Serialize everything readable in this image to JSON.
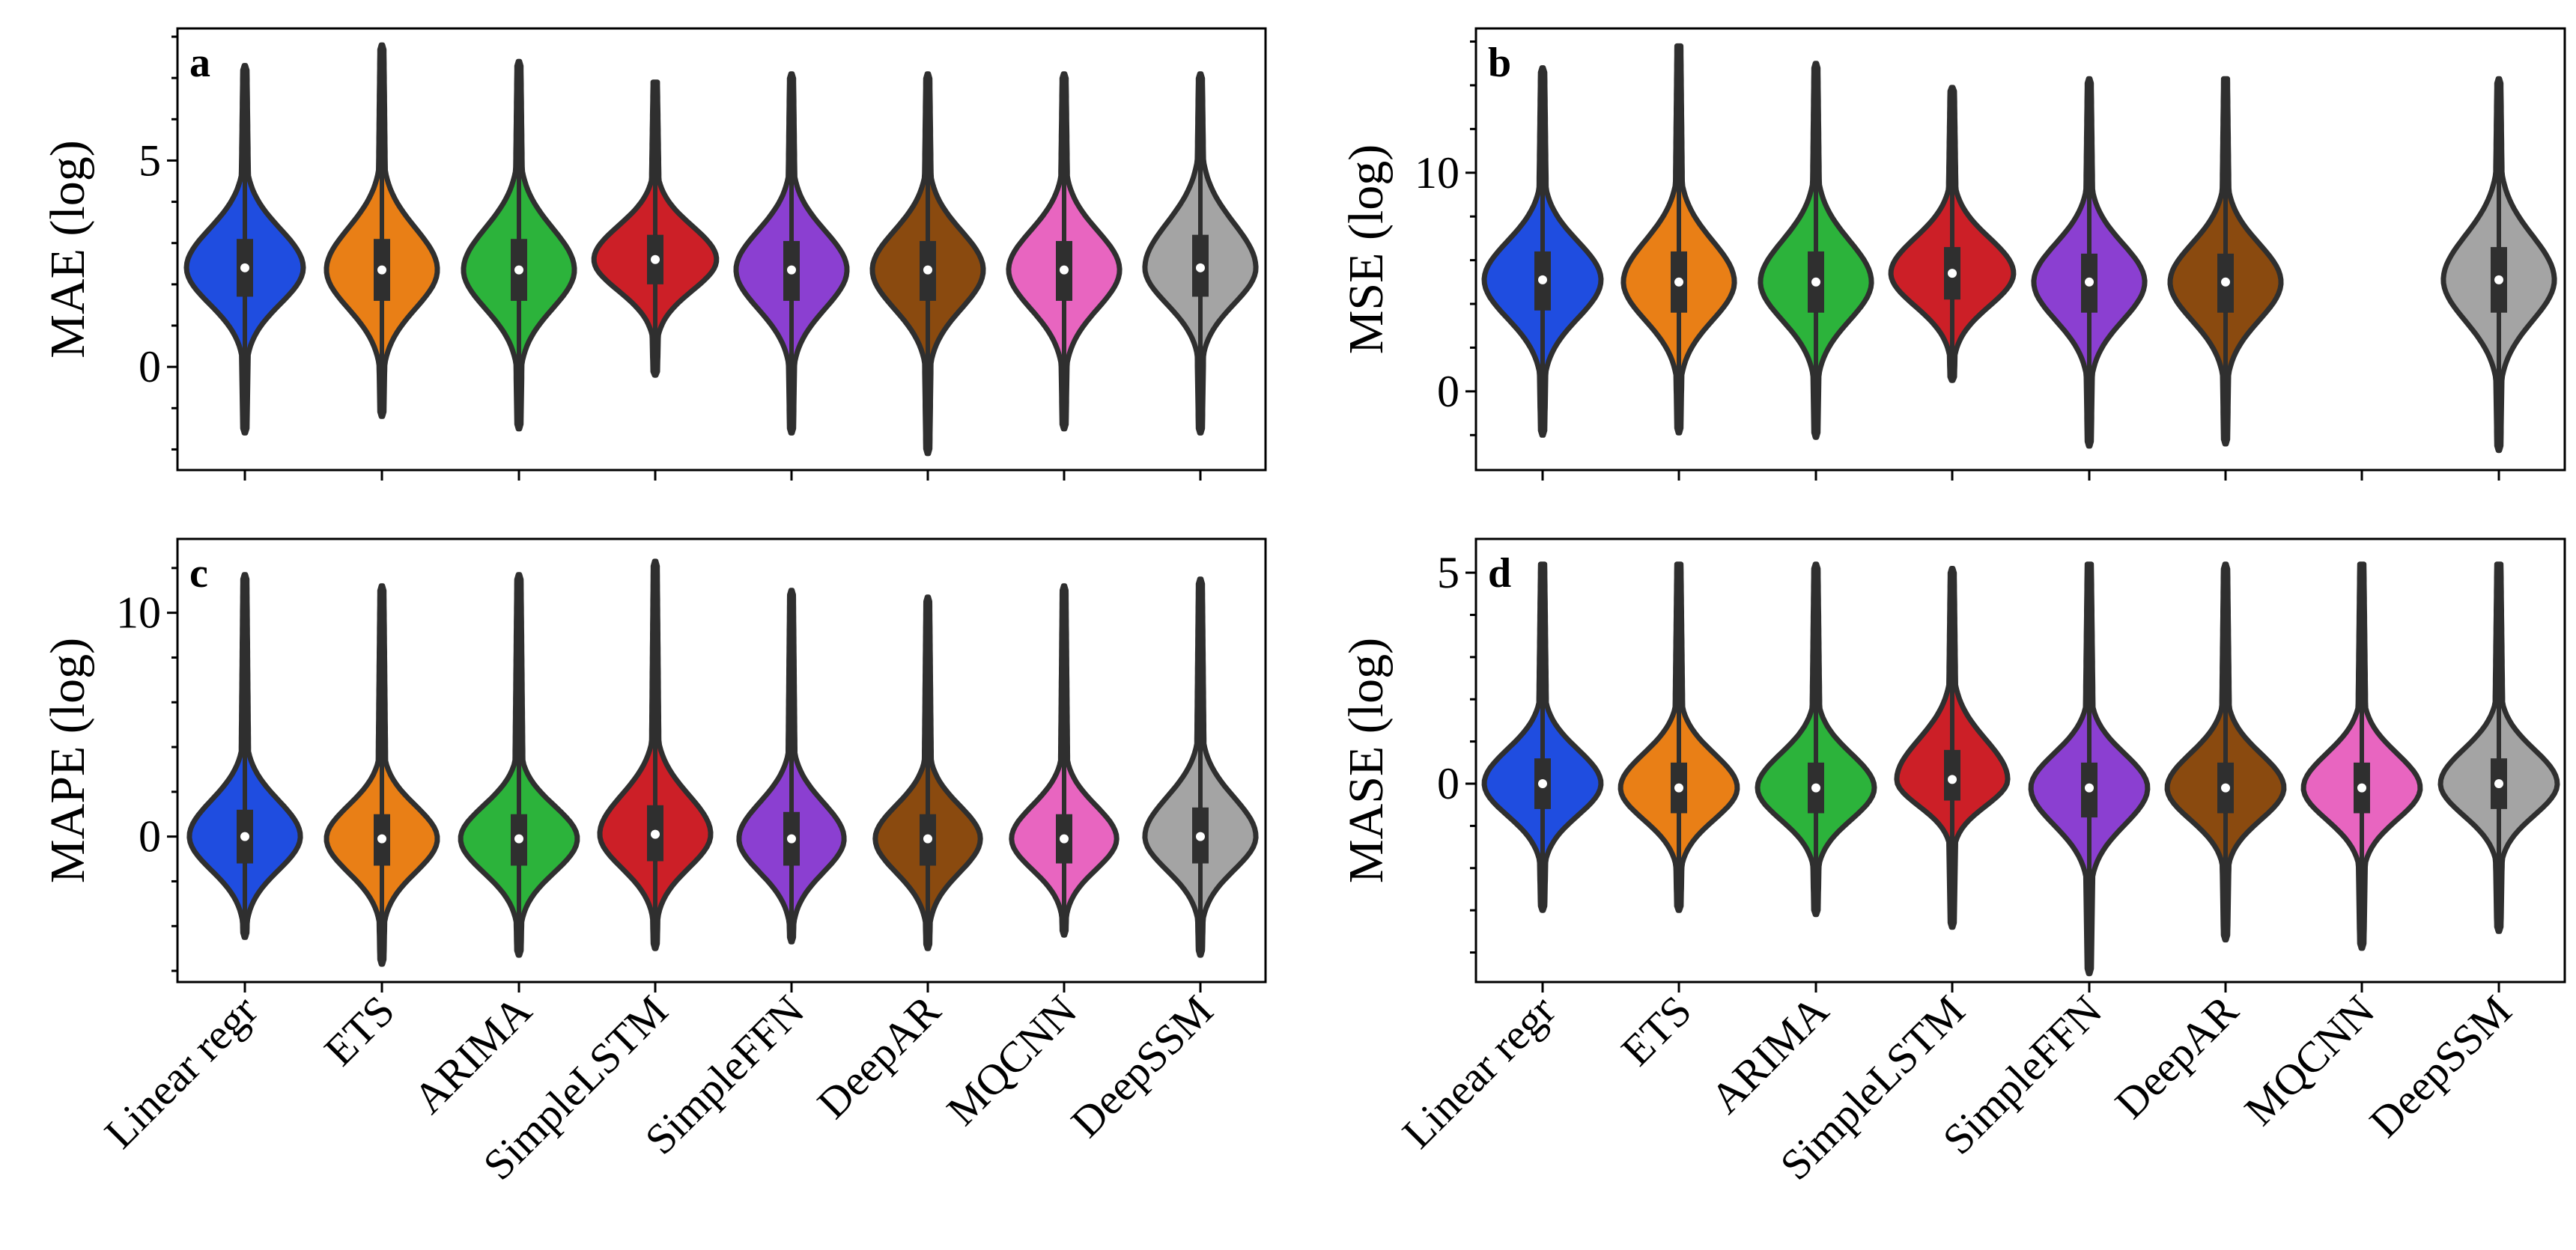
{
  "chart_data": [
    {
      "panel": "a",
      "type": "violin",
      "ylabel": "MAE (log)",
      "ylim": [
        -2.5,
        8.2
      ],
      "yticks": [
        0,
        5
      ],
      "yticks_minor": [
        -2,
        -1,
        1,
        2,
        3,
        4,
        6,
        7,
        8
      ],
      "show_xticklabels": false,
      "categories": [
        "Linear regr",
        "ETS",
        "ARIMA",
        "SimpleLSTM",
        "SimpleFFN",
        "DeepAR",
        "MQCNN",
        "DeepSSM"
      ],
      "series": [
        {
          "name": "Linear regr",
          "color": "#1f4de0",
          "min": -1.6,
          "q1": 1.7,
          "median": 2.4,
          "q3": 3.1,
          "max": 7.3,
          "hw": 1.0
        },
        {
          "name": "ETS",
          "color": "#e97f16",
          "min": -1.2,
          "q1": 1.6,
          "median": 2.35,
          "q3": 3.1,
          "max": 7.8,
          "hw": 0.95
        },
        {
          "name": "ARIMA",
          "color": "#2cb33b",
          "min": -1.5,
          "q1": 1.6,
          "median": 2.35,
          "q3": 3.1,
          "max": 7.4,
          "hw": 0.95
        },
        {
          "name": "SimpleLSTM",
          "color": "#cc1f27",
          "min": -0.2,
          "q1": 2.0,
          "median": 2.6,
          "q3": 3.2,
          "max": 6.9,
          "hw": 1.05
        },
        {
          "name": "SimpleFFN",
          "color": "#8b3fd1",
          "min": -1.6,
          "q1": 1.6,
          "median": 2.35,
          "q3": 3.05,
          "max": 7.1,
          "hw": 0.95
        },
        {
          "name": "DeepAR",
          "color": "#8a4a0f",
          "min": -2.1,
          "q1": 1.6,
          "median": 2.35,
          "q3": 3.05,
          "max": 7.1,
          "hw": 0.95
        },
        {
          "name": "MQCNN",
          "color": "#e865c0",
          "min": -1.5,
          "q1": 1.6,
          "median": 2.35,
          "q3": 3.05,
          "max": 7.1,
          "hw": 0.95
        },
        {
          "name": "DeepSSM",
          "color": "#a4a4a4",
          "min": -1.6,
          "q1": 1.7,
          "median": 2.4,
          "q3": 3.2,
          "max": 7.1,
          "hw": 0.95
        }
      ]
    },
    {
      "panel": "b",
      "type": "violin",
      "ylabel": "MSE (log)",
      "ylim": [
        -3.6,
        16.6
      ],
      "yticks": [
        0,
        10
      ],
      "yticks_minor": [
        -2,
        2,
        4,
        6,
        8,
        12,
        14,
        16
      ],
      "show_xticklabels": false,
      "categories": [
        "Linear regr",
        "ETS",
        "ARIMA",
        "SimpleLSTM",
        "SimpleFFN",
        "DeepAR",
        "MQCNN",
        "DeepSSM"
      ],
      "series": [
        {
          "name": "Linear regr",
          "color": "#1f4de0",
          "min": -2.0,
          "q1": 3.7,
          "median": 5.1,
          "q3": 6.4,
          "max": 14.8,
          "hw": 1.0
        },
        {
          "name": "ETS",
          "color": "#e97f16",
          "min": -1.9,
          "q1": 3.6,
          "median": 5.0,
          "q3": 6.4,
          "max": 15.8,
          "hw": 0.95
        },
        {
          "name": "ARIMA",
          "color": "#2cb33b",
          "min": -2.1,
          "q1": 3.6,
          "median": 5.0,
          "q3": 6.4,
          "max": 15.0,
          "hw": 0.95
        },
        {
          "name": "SimpleLSTM",
          "color": "#cc1f27",
          "min": 0.5,
          "q1": 4.2,
          "median": 5.4,
          "q3": 6.6,
          "max": 13.9,
          "hw": 1.05
        },
        {
          "name": "SimpleFFN",
          "color": "#8b3fd1",
          "min": -2.5,
          "q1": 3.6,
          "median": 5.0,
          "q3": 6.3,
          "max": 14.3,
          "hw": 0.95
        },
        {
          "name": "DeepAR",
          "color": "#8a4a0f",
          "min": -2.4,
          "q1": 3.6,
          "median": 5.0,
          "q3": 6.3,
          "max": 14.3,
          "hw": 0.95
        },
        {
          "name": "MQCNN",
          "color": "#e865c0",
          "min": null,
          "q1": null,
          "median": null,
          "q3": null,
          "max": null,
          "hw": 0
        },
        {
          "name": "DeepSSM",
          "color": "#a4a4a4",
          "min": -2.7,
          "q1": 3.6,
          "median": 5.1,
          "q3": 6.6,
          "max": 14.3,
          "hw": 0.95
        }
      ]
    },
    {
      "panel": "c",
      "type": "violin",
      "ylabel": "MAPE (log)",
      "ylim": [
        -6.5,
        13.3
      ],
      "yticks": [
        0,
        10
      ],
      "yticks_minor": [
        -6,
        -4,
        -2,
        2,
        4,
        6,
        8,
        12
      ],
      "show_xticklabels": true,
      "categories": [
        "Linear regr",
        "ETS",
        "ARIMA",
        "SimpleLSTM",
        "SimpleFFN",
        "DeepAR",
        "MQCNN",
        "DeepSSM"
      ],
      "series": [
        {
          "name": "Linear regr",
          "color": "#1f4de0",
          "min": -4.5,
          "q1": -1.2,
          "median": 0.0,
          "q3": 1.2,
          "max": 11.7,
          "hw": 0.95
        },
        {
          "name": "ETS",
          "color": "#e97f16",
          "min": -5.7,
          "q1": -1.3,
          "median": -0.1,
          "q3": 1.0,
          "max": 11.2,
          "hw": 0.95
        },
        {
          "name": "ARIMA",
          "color": "#2cb33b",
          "min": -5.3,
          "q1": -1.3,
          "median": -0.1,
          "q3": 1.0,
          "max": 11.7,
          "hw": 1.0
        },
        {
          "name": "SimpleLSTM",
          "color": "#cc1f27",
          "min": -5.0,
          "q1": -1.1,
          "median": 0.1,
          "q3": 1.4,
          "max": 12.3,
          "hw": 0.95
        },
        {
          "name": "SimpleFFN",
          "color": "#8b3fd1",
          "min": -4.7,
          "q1": -1.3,
          "median": -0.1,
          "q3": 1.1,
          "max": 11.0,
          "hw": 0.9
        },
        {
          "name": "DeepAR",
          "color": "#8a4a0f",
          "min": -5.0,
          "q1": -1.3,
          "median": -0.1,
          "q3": 1.0,
          "max": 10.7,
          "hw": 0.9
        },
        {
          "name": "MQCNN",
          "color": "#e865c0",
          "min": -4.4,
          "q1": -1.2,
          "median": -0.1,
          "q3": 1.0,
          "max": 11.2,
          "hw": 0.9
        },
        {
          "name": "DeepSSM",
          "color": "#a4a4a4",
          "min": -5.3,
          "q1": -1.2,
          "median": 0.0,
          "q3": 1.3,
          "max": 11.5,
          "hw": 0.95
        }
      ]
    },
    {
      "panel": "d",
      "type": "violin",
      "ylabel": "MASE (log)",
      "ylim": [
        -4.7,
        5.8
      ],
      "yticks": [
        0,
        5
      ],
      "yticks_minor": [
        -4,
        -3,
        -2,
        -1,
        1,
        2,
        3,
        4
      ],
      "show_xticklabels": true,
      "categories": [
        "Linear regr",
        "ETS",
        "ARIMA",
        "SimpleLSTM",
        "SimpleFFN",
        "DeepAR",
        "MQCNN",
        "DeepSSM"
      ],
      "series": [
        {
          "name": "Linear regr",
          "color": "#1f4de0",
          "min": -3.0,
          "q1": -0.6,
          "median": 0.0,
          "q3": 0.6,
          "max": 5.2,
          "hw": 1.0
        },
        {
          "name": "ETS",
          "color": "#e97f16",
          "min": -3.0,
          "q1": -0.7,
          "median": -0.1,
          "q3": 0.5,
          "max": 5.2,
          "hw": 1.0
        },
        {
          "name": "ARIMA",
          "color": "#2cb33b",
          "min": -3.1,
          "q1": -0.7,
          "median": -0.1,
          "q3": 0.5,
          "max": 5.2,
          "hw": 1.0
        },
        {
          "name": "SimpleLSTM",
          "color": "#cc1f27",
          "min": -3.4,
          "q1": -0.4,
          "median": 0.1,
          "q3": 0.8,
          "max": 5.1,
          "hw": 0.95
        },
        {
          "name": "SimpleFFN",
          "color": "#8b3fd1",
          "min": -4.5,
          "q1": -0.8,
          "median": -0.1,
          "q3": 0.5,
          "max": 5.2,
          "hw": 1.0
        },
        {
          "name": "DeepAR",
          "color": "#8a4a0f",
          "min": -3.7,
          "q1": -0.7,
          "median": -0.1,
          "q3": 0.5,
          "max": 5.2,
          "hw": 1.0
        },
        {
          "name": "MQCNN",
          "color": "#e865c0",
          "min": -3.9,
          "q1": -0.7,
          "median": -0.1,
          "q3": 0.5,
          "max": 5.2,
          "hw": 1.0
        },
        {
          "name": "DeepSSM",
          "color": "#a4a4a4",
          "min": -3.5,
          "q1": -0.6,
          "median": 0.0,
          "q3": 0.6,
          "max": 5.2,
          "hw": 1.0
        }
      ]
    }
  ]
}
